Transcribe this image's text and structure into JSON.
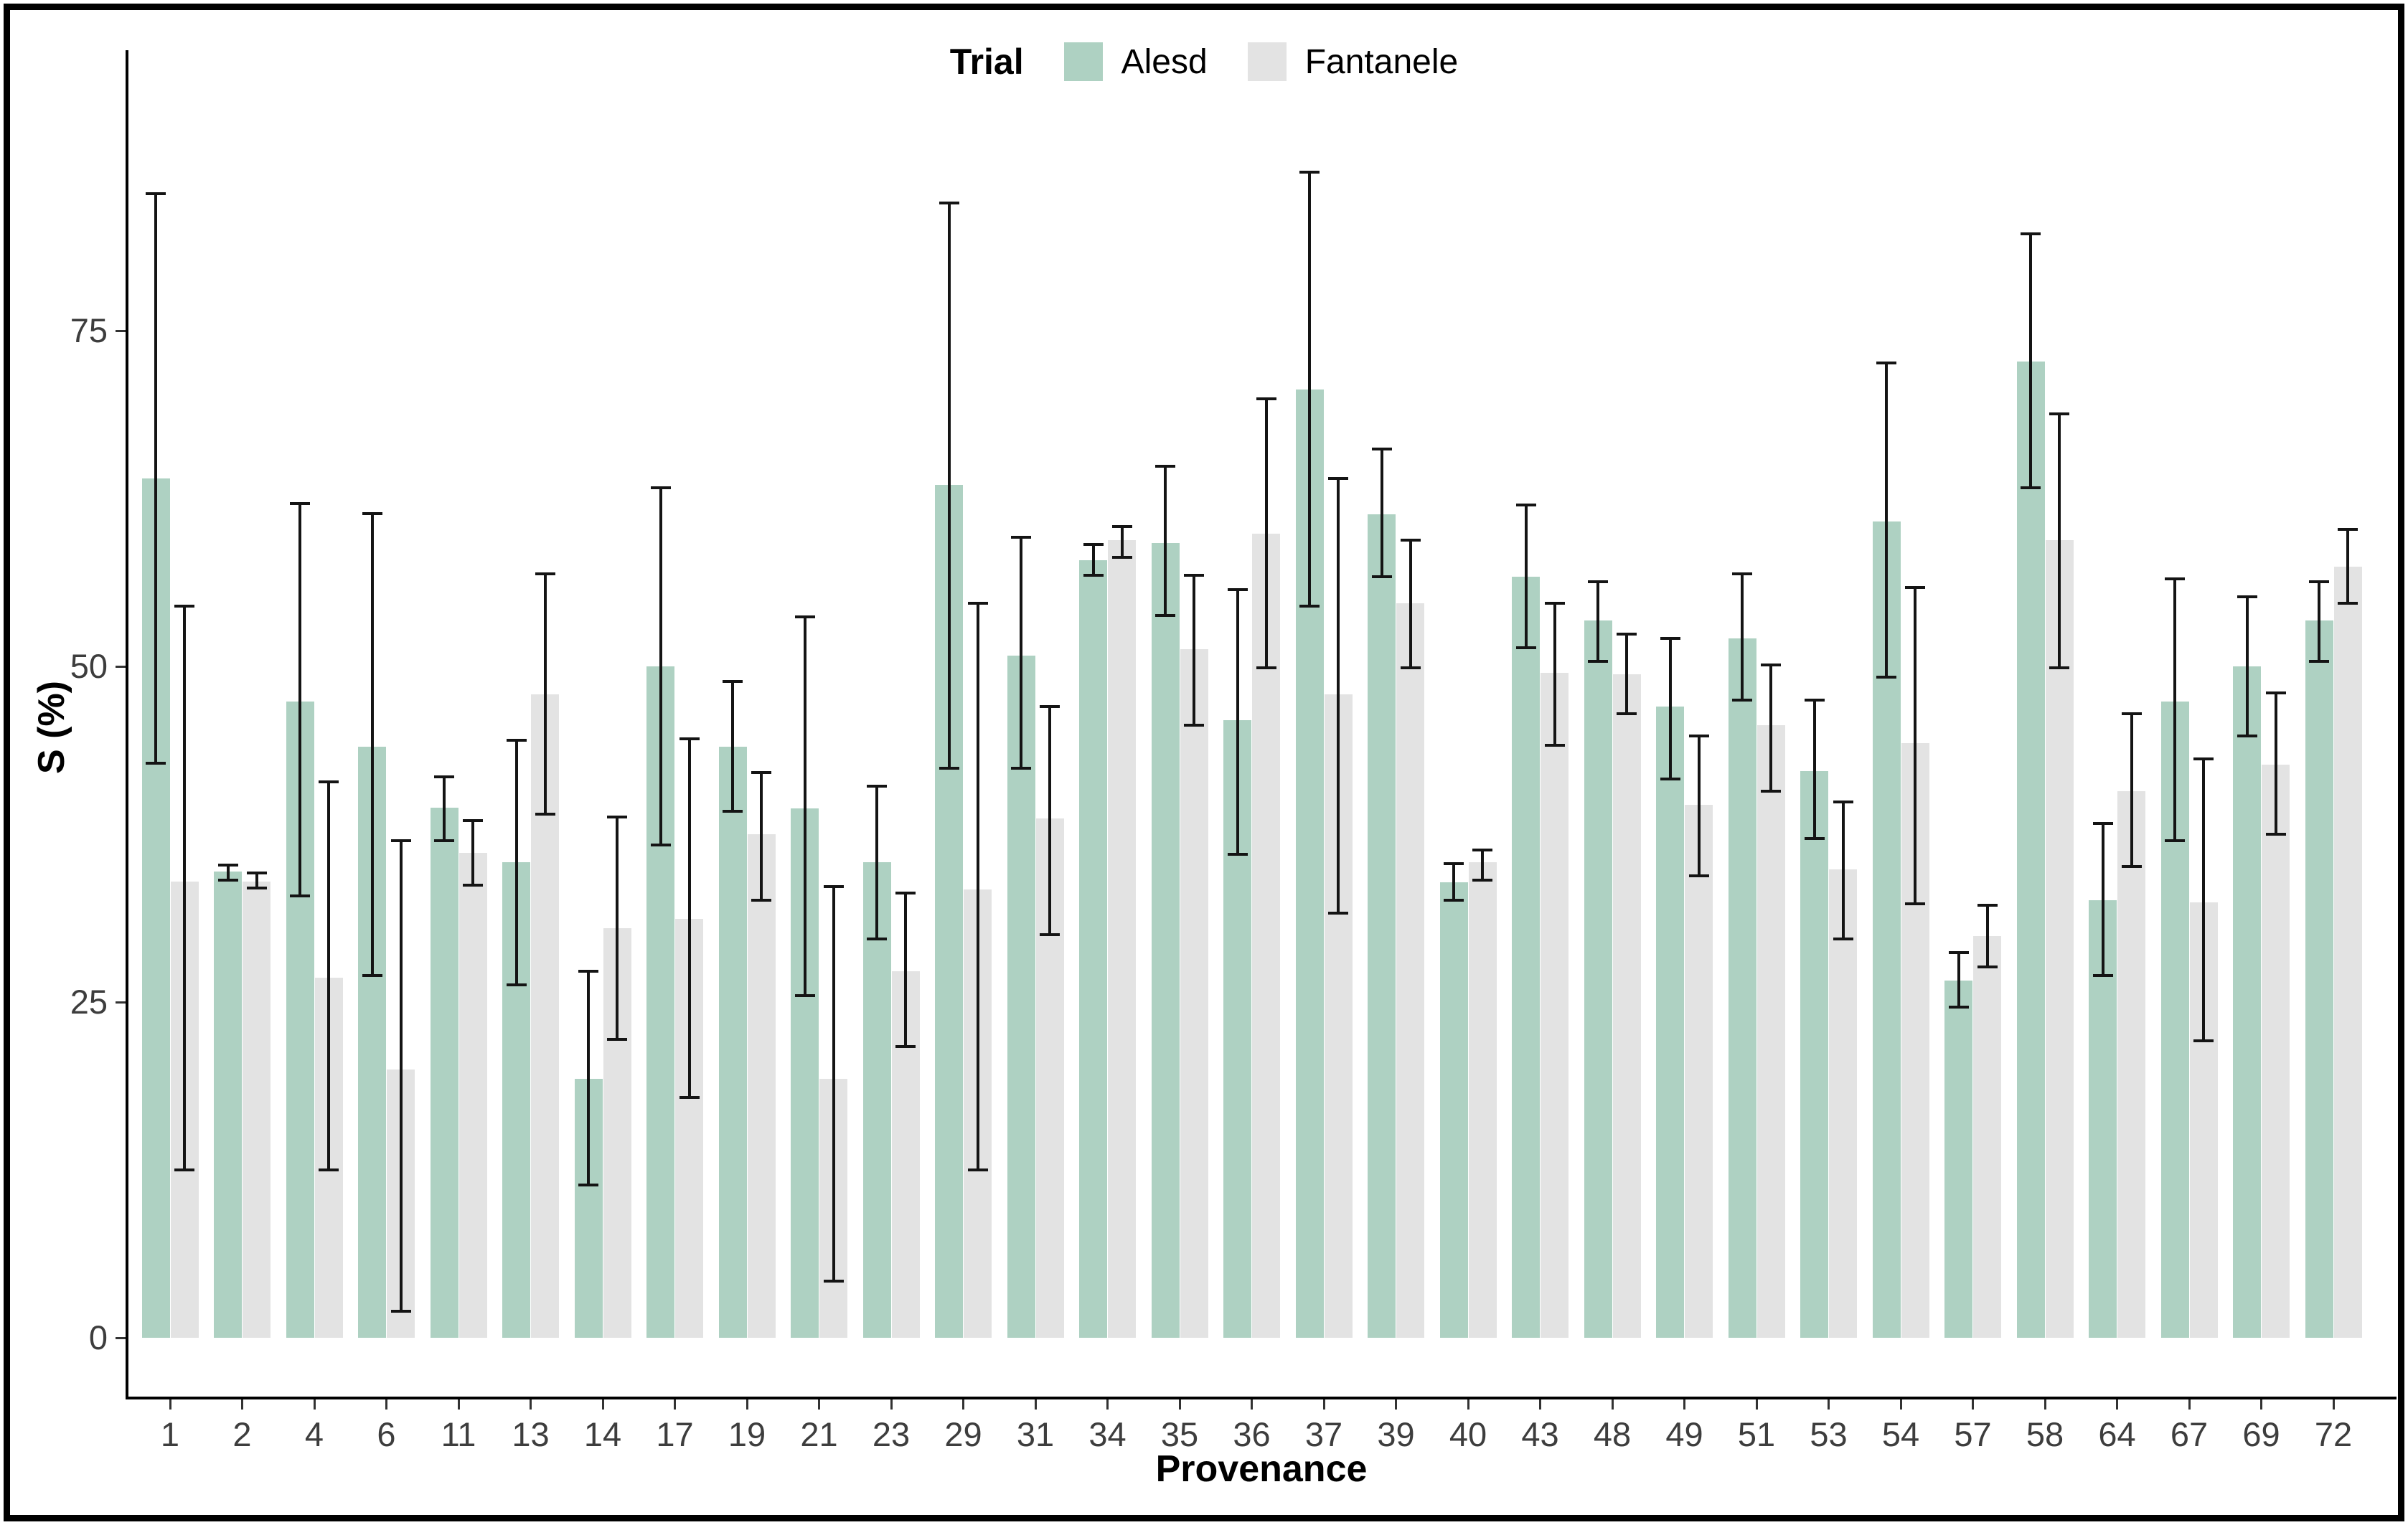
{
  "frame": {
    "border_color": "#000000"
  },
  "legend": {
    "title": "Trial",
    "items": [
      {
        "label": "Alesd",
        "color": "#aed1c2"
      },
      {
        "label": "Fantanele",
        "color": "#e3e3e3"
      }
    ]
  },
  "axes": {
    "y_title": "S (%)",
    "x_title": "Provenance",
    "y_ticks": [
      0,
      25,
      50,
      75
    ]
  },
  "chart_data": {
    "type": "bar",
    "title": "",
    "xlabel": "Provenance",
    "ylabel": "S (%)",
    "ylim": [
      0,
      95
    ],
    "grid": false,
    "legend_position": "top-center",
    "error_bars": true,
    "categories": [
      "1",
      "2",
      "4",
      "6",
      "11",
      "13",
      "14",
      "17",
      "19",
      "21",
      "23",
      "29",
      "31",
      "34",
      "35",
      "36",
      "37",
      "39",
      "40",
      "43",
      "48",
      "49",
      "51",
      "53",
      "54",
      "57",
      "58",
      "64",
      "67",
      "69",
      "72"
    ],
    "series": [
      {
        "name": "Alesd",
        "color": "#aed1c2",
        "values": [
          64.0,
          34.7,
          47.4,
          44.0,
          39.5,
          35.4,
          19.3,
          50.0,
          44.0,
          39.4,
          35.4,
          63.5,
          50.8,
          57.9,
          59.2,
          46.0,
          70.6,
          61.3,
          33.9,
          56.7,
          53.4,
          47.0,
          52.1,
          42.2,
          60.8,
          26.6,
          72.7,
          32.6,
          47.4,
          50.0,
          53.4
        ],
        "err_low": [
          42.8,
          34.1,
          32.9,
          27.0,
          37.0,
          26.3,
          11.4,
          36.7,
          39.2,
          25.5,
          29.7,
          42.4,
          42.4,
          56.8,
          53.8,
          36.0,
          54.5,
          56.7,
          32.6,
          51.4,
          50.4,
          41.6,
          47.5,
          37.2,
          49.2,
          24.6,
          63.3,
          27.0,
          37.0,
          44.8,
          50.4
        ],
        "err_high": [
          85.2,
          35.2,
          62.1,
          61.4,
          41.8,
          44.5,
          27.3,
          63.3,
          48.9,
          53.7,
          41.1,
          84.5,
          59.6,
          59.1,
          64.9,
          55.7,
          86.8,
          66.2,
          35.3,
          62.0,
          56.3,
          52.1,
          56.9,
          47.5,
          72.6,
          28.7,
          82.2,
          38.3,
          56.5,
          55.2,
          56.3
        ]
      },
      {
        "name": "Fantanele",
        "color": "#e3e3e3",
        "values": [
          34.0,
          34.0,
          26.8,
          20.0,
          36.1,
          47.9,
          30.5,
          31.2,
          37.5,
          19.3,
          27.3,
          33.4,
          38.7,
          59.4,
          51.3,
          59.9,
          47.9,
          54.7,
          35.4,
          49.5,
          49.4,
          39.7,
          45.6,
          34.9,
          44.3,
          29.9,
          59.4,
          40.7,
          32.4,
          42.7,
          57.4
        ],
        "err_low": [
          12.5,
          33.5,
          12.5,
          2.0,
          33.7,
          39.0,
          22.2,
          17.9,
          32.6,
          4.2,
          21.7,
          12.5,
          30.0,
          58.1,
          45.6,
          49.9,
          31.6,
          49.9,
          34.1,
          44.1,
          46.5,
          34.4,
          40.7,
          29.7,
          32.3,
          27.6,
          49.9,
          35.1,
          22.1,
          37.5,
          54.7
        ],
        "err_high": [
          54.5,
          34.6,
          41.4,
          37.0,
          38.5,
          56.9,
          38.8,
          44.6,
          42.1,
          33.6,
          33.1,
          54.7,
          47.0,
          60.4,
          56.8,
          69.9,
          64.0,
          59.4,
          36.3,
          54.7,
          52.4,
          44.8,
          50.1,
          39.9,
          55.9,
          32.2,
          68.8,
          46.5,
          43.1,
          48.0,
          60.2
        ]
      }
    ]
  }
}
